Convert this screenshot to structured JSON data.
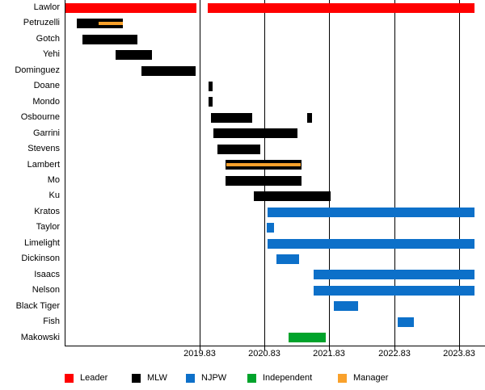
{
  "chart_data": {
    "type": "gantt",
    "title": "",
    "x_axis": {
      "min": 2017.75,
      "max": 2024.23,
      "ticks": [
        2019.83,
        2020.83,
        2021.83,
        2022.83,
        2023.83
      ],
      "tick_labels": [
        "2019.83",
        "2020.83",
        "2021.83",
        "2022.83",
        "2023.83"
      ],
      "grid": true
    },
    "colors": {
      "leader": "#ff0000",
      "mlw": "#000000",
      "njpw": "#0d70c9",
      "independent": "#00a32b",
      "manager": "#f9a12b"
    },
    "legend": [
      {
        "key": "leader",
        "label": "Leader",
        "color": "#ff0000"
      },
      {
        "key": "mlw",
        "label": "MLW",
        "color": "#000000"
      },
      {
        "key": "njpw",
        "label": "NJPW",
        "color": "#0d70c9"
      },
      {
        "key": "independent",
        "label": "Independent",
        "color": "#00a32b"
      },
      {
        "key": "manager",
        "label": "Manager",
        "color": "#f9a12b"
      }
    ],
    "legend_position": "bottom",
    "rows": [
      {
        "label": "Lawlor",
        "segments": [
          {
            "start": 2017.75,
            "end": 2019.78,
            "role": "leader"
          },
          {
            "start": 2019.95,
            "end": 2024.07,
            "role": "leader"
          }
        ]
      },
      {
        "label": "Petruzelli",
        "segments": [
          {
            "start": 2017.94,
            "end": 2018.65,
            "role": "mlw",
            "manager_overlay": {
              "start": 2018.27,
              "end": 2018.65
            }
          }
        ]
      },
      {
        "label": "Gotch",
        "segments": [
          {
            "start": 2018.02,
            "end": 2018.87,
            "role": "mlw"
          }
        ]
      },
      {
        "label": "Yehi",
        "segments": [
          {
            "start": 2018.53,
            "end": 2019.09,
            "role": "mlw"
          }
        ]
      },
      {
        "label": "Dominguez",
        "segments": [
          {
            "start": 2018.93,
            "end": 2019.77,
            "role": "mlw"
          }
        ]
      },
      {
        "label": "Doane",
        "segments": [
          {
            "start": 2019.97,
            "end": 2020.03,
            "role": "mlw"
          }
        ]
      },
      {
        "label": "Mondo",
        "segments": [
          {
            "start": 2019.97,
            "end": 2020.03,
            "role": "mlw"
          }
        ]
      },
      {
        "label": "Osbourne",
        "segments": [
          {
            "start": 2020.0,
            "end": 2020.64,
            "role": "mlw"
          },
          {
            "start": 2021.49,
            "end": 2021.56,
            "role": "mlw"
          }
        ]
      },
      {
        "label": "Garrini",
        "segments": [
          {
            "start": 2020.04,
            "end": 2021.34,
            "role": "mlw"
          }
        ]
      },
      {
        "label": "Stevens",
        "segments": [
          {
            "start": 2020.1,
            "end": 2020.76,
            "role": "mlw"
          }
        ]
      },
      {
        "label": "Lambert",
        "segments": [
          {
            "start": 2020.23,
            "end": 2021.4,
            "role": "mlw",
            "manager_overlay": {
              "start": 2020.24,
              "end": 2021.39
            }
          }
        ]
      },
      {
        "label": "Mo",
        "segments": [
          {
            "start": 2020.23,
            "end": 2021.4,
            "role": "mlw"
          }
        ]
      },
      {
        "label": "Ku",
        "segments": [
          {
            "start": 2020.66,
            "end": 2021.85,
            "role": "mlw"
          }
        ]
      },
      {
        "label": "Kratos",
        "segments": [
          {
            "start": 2020.88,
            "end": 2024.07,
            "role": "njpw"
          }
        ]
      },
      {
        "label": "Taylor",
        "segments": [
          {
            "start": 2020.86,
            "end": 2020.98,
            "role": "njpw"
          }
        ]
      },
      {
        "label": "Limelight",
        "segments": [
          {
            "start": 2020.88,
            "end": 2024.07,
            "role": "njpw"
          }
        ]
      },
      {
        "label": "Dickinson",
        "segments": [
          {
            "start": 2021.01,
            "end": 2021.36,
            "role": "njpw"
          }
        ]
      },
      {
        "label": "Isaacs",
        "segments": [
          {
            "start": 2021.59,
            "end": 2024.07,
            "role": "njpw"
          }
        ]
      },
      {
        "label": "Nelson",
        "segments": [
          {
            "start": 2021.59,
            "end": 2024.07,
            "role": "njpw"
          }
        ]
      },
      {
        "label": "Black Tiger",
        "segments": [
          {
            "start": 2021.9,
            "end": 2022.27,
            "role": "njpw"
          }
        ]
      },
      {
        "label": "Fish",
        "segments": [
          {
            "start": 2022.88,
            "end": 2023.13,
            "role": "njpw"
          }
        ]
      },
      {
        "label": "Makowski",
        "segments": [
          {
            "start": 2021.2,
            "end": 2021.77,
            "role": "independent"
          }
        ]
      }
    ]
  }
}
